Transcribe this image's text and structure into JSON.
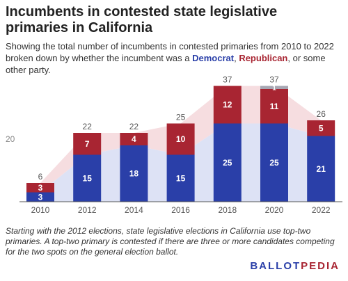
{
  "header": {
    "title": "Incumbents in contested state legislative primaries in California",
    "subtitle_pre": "Showing the total number of incumbents in contested primaries from 2010 to 2022 broken down by whether the incumbent was a ",
    "subtitle_dem": "Democrat",
    "subtitle_sep": ", ",
    "subtitle_rep": "Republican",
    "subtitle_post": ", or some other party."
  },
  "chart_data": {
    "type": "bar",
    "stacked": true,
    "categories": [
      "2010",
      "2012",
      "2014",
      "2016",
      "2018",
      "2020",
      "2022"
    ],
    "series": [
      {
        "name": "Democrat",
        "values": [
          3,
          15,
          18,
          15,
          25,
          25,
          21
        ],
        "color": "#2a3fa8"
      },
      {
        "name": "Republican",
        "values": [
          3,
          7,
          4,
          10,
          12,
          11,
          5
        ],
        "color": "#a82532"
      },
      {
        "name": "Other",
        "values": [
          0,
          0,
          0,
          0,
          0,
          1,
          0
        ],
        "color": "#a7a7b3"
      }
    ],
    "totals": [
      6,
      22,
      22,
      25,
      37,
      37,
      26
    ],
    "y_ticks": [
      20
    ],
    "ylim": [
      0,
      40
    ],
    "grid": false,
    "background_band_colors": {
      "dem": "#dde2f5",
      "rep": "#f6dde0"
    }
  },
  "footnote": "Starting with the 2012 elections, state legislative elections in California use top-two primaries. A top-two primary is contested if there are three or more candidates competing for the two spots on the general election ballot.",
  "logo": {
    "part1": "BALLOT",
    "part2": "PEDIA"
  }
}
